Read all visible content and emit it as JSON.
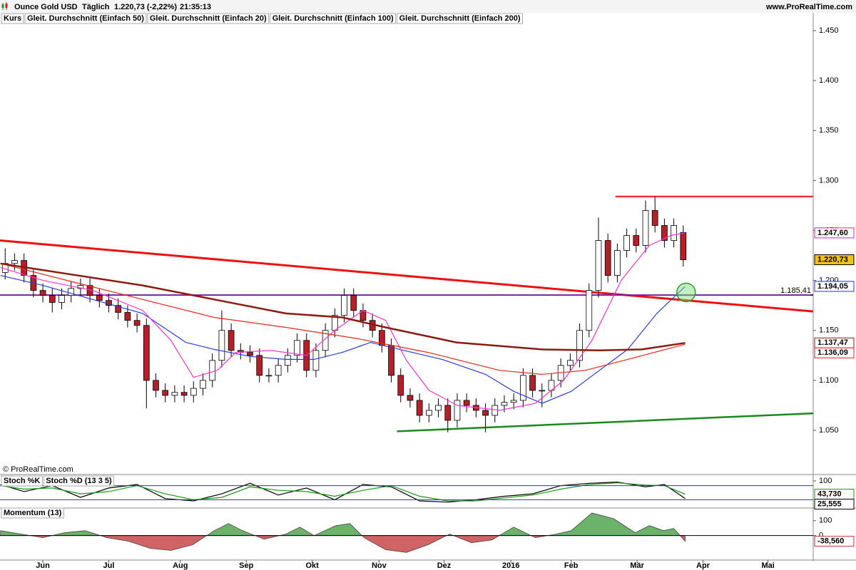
{
  "header": {
    "instrument": "Ounce Gold USD",
    "period": "Täglich",
    "quote": "1.220,73 (-2,22%)",
    "time": "21:35:13",
    "site": "www.ProRealTime.com"
  },
  "chart_data": [
    {
      "type": "candlestick",
      "legend_title": "Kurs",
      "copyright": "© ProRealTime.com",
      "xlim": [
        -0.55,
        85.8
      ],
      "ylim": [
        1006.5,
        1456.4
      ],
      "yticks": [
        {
          "value": 1050,
          "label": "1.050"
        },
        {
          "value": 1100,
          "label": "1.100"
        },
        {
          "value": 1150,
          "label": "1.150"
        },
        {
          "value": 1200,
          "label": "1.200"
        },
        {
          "value": 1250,
          "label": "1.250"
        },
        {
          "value": 1300,
          "label": "1.300"
        },
        {
          "value": 1350,
          "label": "1.350"
        },
        {
          "value": 1400,
          "label": "1.400"
        },
        {
          "value": 1450,
          "label": "1.450"
        }
      ],
      "candles": {
        "up_color": "#ffffff",
        "down_color": "#b3202a",
        "open": [
          1208,
          1217,
          1220,
          1205,
          1190,
          1185,
          1178,
          1185,
          1192,
          1195,
          1185,
          1180,
          1175,
          1168,
          1160,
          1155,
          1100,
          1090,
          1085,
          1088,
          1085,
          1092,
          1100,
          1120,
          1150,
          1130,
          1128,
          1125,
          1105,
          1105,
          1115,
          1125,
          1140,
          1110,
          1130,
          1150,
          1165,
          1185,
          1170,
          1160,
          1150,
          1135,
          1105,
          1085,
          1080,
          1065,
          1070,
          1075,
          1060,
          1080,
          1075,
          1070,
          1065,
          1075,
          1078,
          1080,
          1105,
          1090,
          1090,
          1100,
          1115,
          1120,
          1150,
          1190,
          1240,
          1205,
          1230,
          1245,
          1235,
          1270,
          1255,
          1240,
          1248
        ],
        "high": [
          1232,
          1227,
          1227,
          1212,
          1197,
          1192,
          1192,
          1199,
          1202,
          1202,
          1192,
          1187,
          1182,
          1175,
          1167,
          1162,
          1107,
          1097,
          1095,
          1095,
          1099,
          1107,
          1127,
          1170,
          1157,
          1137,
          1135,
          1132,
          1112,
          1122,
          1132,
          1147,
          1147,
          1137,
          1157,
          1172,
          1192,
          1192,
          1177,
          1167,
          1157,
          1142,
          1112,
          1092,
          1087,
          1077,
          1082,
          1082,
          1087,
          1087,
          1082,
          1077,
          1082,
          1085,
          1087,
          1112,
          1112,
          1097,
          1107,
          1122,
          1127,
          1157,
          1197,
          1263,
          1247,
          1237,
          1252,
          1252,
          1280,
          1284,
          1262,
          1262,
          1255
        ],
        "low": [
          1201,
          1210,
          1198,
          1183,
          1178,
          1168,
          1171,
          1178,
          1185,
          1178,
          1173,
          1168,
          1161,
          1153,
          1148,
          1072,
          1083,
          1078,
          1078,
          1078,
          1078,
          1085,
          1093,
          1113,
          1123,
          1121,
          1118,
          1098,
          1098,
          1098,
          1108,
          1118,
          1103,
          1103,
          1123,
          1143,
          1158,
          1163,
          1153,
          1143,
          1128,
          1098,
          1078,
          1073,
          1058,
          1058,
          1063,
          1048,
          1053,
          1068,
          1063,
          1048,
          1058,
          1068,
          1071,
          1073,
          1083,
          1073,
          1083,
          1093,
          1108,
          1113,
          1143,
          1183,
          1198,
          1198,
          1223,
          1228,
          1228,
          1248,
          1233,
          1233,
          1214
        ],
        "close": [
          1217,
          1220,
          1205,
          1190,
          1185,
          1178,
          1185,
          1192,
          1195,
          1185,
          1180,
          1175,
          1168,
          1160,
          1155,
          1100,
          1090,
          1085,
          1088,
          1085,
          1092,
          1100,
          1120,
          1150,
          1130,
          1128,
          1125,
          1105,
          1105,
          1115,
          1125,
          1140,
          1110,
          1130,
          1150,
          1165,
          1185,
          1170,
          1160,
          1150,
          1135,
          1105,
          1085,
          1080,
          1065,
          1070,
          1075,
          1060,
          1080,
          1075,
          1070,
          1065,
          1075,
          1078,
          1080,
          1105,
          1090,
          1090,
          1100,
          1115,
          1120,
          1150,
          1190,
          1240,
          1205,
          1230,
          1245,
          1235,
          1270,
          1255,
          1240,
          1255,
          1220.73
        ]
      },
      "series": [
        {
          "name": "Gleit. Durchschnitt (Einfach 50)",
          "color": "#2a3fd8",
          "x": [
            -0.5,
            4,
            9.3,
            14.6,
            19.2,
            22.2,
            26,
            29.8,
            32.8,
            35.8,
            38.8,
            41.9,
            46.4,
            51,
            54,
            57,
            60.1,
            63.1,
            66.1,
            69.2,
            72.2
          ],
          "values": [
            1205,
            1195,
            1181,
            1167,
            1138,
            1131,
            1124,
            1121,
            1121,
            1128,
            1138,
            1131,
            1121,
            1106,
            1089,
            1077,
            1089,
            1110,
            1131,
            1167,
            1194.05
          ]
        },
        {
          "name": "Gleit. Durchschnitt (Einfach 20)",
          "color": "#ff33cc",
          "x": [
            -0.5,
            4,
            9.3,
            14.6,
            17.6,
            20,
            22.5,
            24.5,
            28.2,
            32,
            35,
            38,
            40.4,
            42.6,
            45,
            48,
            52.5,
            56.3,
            59.3,
            62.3,
            65.4,
            68.4,
            70.7,
            72.2
          ],
          "values": [
            1213,
            1200,
            1190,
            1170,
            1140,
            1103,
            1110,
            1128,
            1130,
            1125,
            1150,
            1170,
            1160,
            1120,
            1090,
            1075,
            1070,
            1077,
            1100,
            1140,
            1200,
            1235,
            1245,
            1247.6
          ]
        },
        {
          "name": "Gleit. Durchschnitt (Einfach 100)",
          "color": "#e8281e",
          "x": [
            -0.5,
            7,
            14.6,
            22.2,
            29.8,
            37.3,
            44.9,
            52.5,
            57,
            61.6,
            66.1,
            72.2
          ],
          "values": [
            1217,
            1199,
            1181,
            1163,
            1153,
            1142,
            1128,
            1110,
            1106,
            1110,
            1121,
            1136.09
          ]
        },
        {
          "name": "Gleit. Durchschnitt (Einfach 200)",
          "color": "#8b1a10",
          "x": [
            -0.5,
            7,
            14.6,
            22.2,
            29.8,
            35.8,
            40.4,
            47.9,
            57,
            63.1,
            67.6,
            72.2
          ],
          "values": [
            1217,
            1206,
            1195,
            1181,
            1167,
            1163,
            1153,
            1138,
            1131,
            1130,
            1131,
            1137.47
          ]
        }
      ],
      "drawings": [
        {
          "color": "#ee1111",
          "width": 3,
          "x": [
            -0.55,
            85.8
          ],
          "values": [
            1240,
            1169
          ]
        },
        {
          "color": "#ee1111",
          "width": 2,
          "x": [
            64.8,
            85.8
          ],
          "values": [
            1284,
            1284
          ]
        },
        {
          "color": "#7a1fa2",
          "width": 2,
          "x": [
            -0.55,
            85.8
          ],
          "values": [
            1185.41,
            1185.41
          ]
        },
        {
          "color": "#1a8a1a",
          "width": 2.5,
          "x": [
            41.6,
            85.8
          ],
          "values": [
            1049,
            1067
          ]
        }
      ],
      "highlight": {
        "x": 72.3,
        "value": 1188,
        "color": "#2a9a2a"
      },
      "markers": [
        {
          "value": 1247.6,
          "label": "1.247,60",
          "color": "#e020c0",
          "background": "#ffffff"
        },
        {
          "value": 1220.73,
          "label": "1.220,73",
          "color": "#000000",
          "background": "#f2c21b"
        },
        {
          "value": 1194.05,
          "label": "1.194,05",
          "color": "#2030e0",
          "background": "#ffffff"
        },
        {
          "value": 1185.41,
          "label": "1.185,41",
          "color": "#000000",
          "background": null
        },
        {
          "value": 1137.47,
          "label": "1.137,47",
          "color": "#8b1a10",
          "background": "#ffffff"
        },
        {
          "value": 1136.09,
          "label": "1.136,09",
          "color": "#e02020",
          "background": "#ffffff"
        }
      ]
    },
    {
      "type": "line",
      "xlim": [
        -0.55,
        85.8
      ],
      "ylim": [
        0,
        100
      ],
      "yticks": [
        100
      ],
      "hlines": [
        80,
        20
      ],
      "hline_color": "#3030c0",
      "series": [
        {
          "name": "Stoch %K",
          "color": "#000000",
          "x": [
            -0.5,
            2,
            5,
            8,
            11,
            14,
            17,
            20,
            23,
            26,
            29,
            32,
            35,
            38,
            41,
            44,
            47,
            50,
            53,
            56,
            59,
            62,
            65,
            68,
            70,
            72.2
          ],
          "values": [
            85,
            55,
            80,
            30,
            70,
            85,
            25,
            15,
            45,
            90,
            40,
            70,
            20,
            85,
            75,
            15,
            10,
            20,
            35,
            45,
            80,
            90,
            95,
            75,
            85,
            25.555
          ]
        },
        {
          "name": "Stoch %D (13 3 5)",
          "color": "#1a9a1a",
          "x": [
            -0.5,
            2,
            5,
            8,
            11,
            14,
            17,
            20,
            23,
            26,
            29,
            32,
            35,
            38,
            41,
            44,
            47,
            50,
            53,
            56,
            59,
            62,
            65,
            68,
            70,
            72.2
          ],
          "values": [
            80,
            65,
            70,
            45,
            55,
            80,
            45,
            20,
            30,
            75,
            60,
            55,
            35,
            60,
            80,
            35,
            15,
            15,
            28,
            40,
            65,
            85,
            92,
            82,
            80,
            43.73
          ]
        }
      ],
      "markers": [
        {
          "value": 43.73,
          "label": "43,730",
          "color": "#1a9a1a",
          "background": "#ffffff"
        },
        {
          "value": 25.555,
          "label": "25,555",
          "color": "#000000",
          "background": "#ffffff"
        }
      ]
    },
    {
      "type": "area",
      "xlim": [
        -0.55,
        85.8
      ],
      "ylim": [
        -160,
        176
      ],
      "yticks": [
        100,
        0
      ],
      "xticks": [
        {
          "value": 4,
          "label": "Jun"
        },
        {
          "value": 11,
          "label": "Jul"
        },
        {
          "value": 18.6,
          "label": "Aug"
        },
        {
          "value": 25.6,
          "label": "Sep"
        },
        {
          "value": 32.6,
          "label": "Okt"
        },
        {
          "value": 39.7,
          "label": "Nov"
        },
        {
          "value": 46.6,
          "label": "Dez"
        },
        {
          "value": 53.7,
          "label": "2016"
        },
        {
          "value": 60.1,
          "label": "Feb"
        },
        {
          "value": 67.1,
          "label": "Mär"
        },
        {
          "value": 74.1,
          "label": "Apr"
        },
        {
          "value": 81,
          "label": "Mai"
        }
      ],
      "up_color": "#3a9a3a",
      "down_color": "#c03030",
      "series": [
        {
          "name": "Momentum (13)",
          "color": "#b04040",
          "x": [
            -0.5,
            1.7,
            4,
            6.3,
            8.5,
            10.8,
            13.1,
            15.4,
            17.6,
            19.9,
            22.2,
            23.7,
            25.2,
            27.5,
            29.8,
            31.3,
            32.8,
            35.1,
            36.6,
            38.1,
            40.4,
            42.6,
            44.9,
            47.2,
            49.5,
            51.7,
            54,
            56.3,
            58.5,
            60.1,
            62.3,
            64.6,
            66.9,
            68.4,
            69.9,
            71,
            72.2
          ],
          "values": [
            33,
            10,
            -14,
            19,
            33,
            -14,
            -38,
            -86,
            -100,
            -62,
            33,
            81,
            33,
            -24,
            10,
            57,
            0,
            67,
            81,
            -14,
            -95,
            -114,
            -62,
            10,
            -48,
            -29,
            57,
            -14,
            10,
            33,
            152,
            114,
            19,
            67,
            33,
            48,
            -38.56
          ]
        }
      ],
      "markers": [
        {
          "value": -38.56,
          "label": "-38,560",
          "color": "#c03030",
          "background": "#ffffff"
        }
      ]
    }
  ]
}
